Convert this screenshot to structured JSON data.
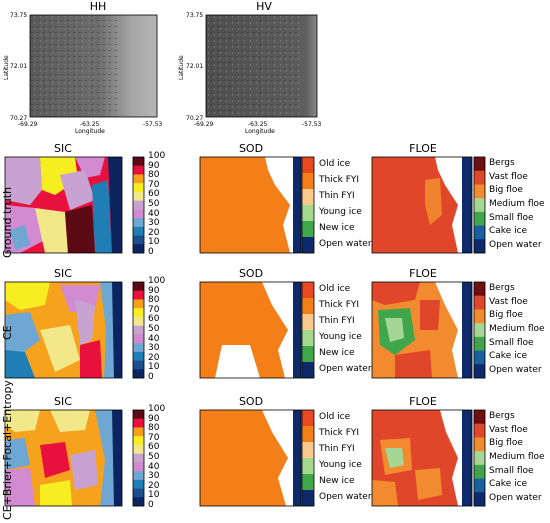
{
  "sar": {
    "panels": [
      {
        "title": "HH",
        "ylabel": "Latitude",
        "xlabel": "Longitude",
        "yticks": [
          "73.75",
          "72.01",
          "70.27"
        ],
        "xticks": [
          "-69.29",
          "-63.25",
          "-57.53"
        ]
      },
      {
        "title": "HV",
        "ylabel": "Latitude",
        "xlabel": "Longitude",
        "yticks": [
          "73.75",
          "72.01",
          "70.27"
        ],
        "xticks": [
          "-69.29",
          "-63.25",
          "-57.53"
        ]
      }
    ]
  },
  "rows": [
    {
      "label": "Ground truth"
    },
    {
      "label": "CE"
    },
    {
      "label": "CE+Brier+Focal+Entropy"
    }
  ],
  "column_titles": {
    "sic": "SIC",
    "sod": "SOD",
    "floe": "FLOE"
  },
  "sic_colorbar": {
    "ticks": [
      "100",
      "90",
      "80",
      "70",
      "60",
      "50",
      "40",
      "30",
      "20",
      "10",
      "0"
    ],
    "colors": [
      "#5c0a14",
      "#e8113e",
      "#f6a21d",
      "#f7ee21",
      "#f2e889",
      "#c8a3d2",
      "#d28ad0",
      "#6ea7d3",
      "#1f7fb5",
      "#1c4f8e",
      "#0c2460"
    ]
  },
  "sod_legend": {
    "items": [
      "Old ice",
      "Thick FYI",
      "Thin FYI",
      "Young ice",
      "New ice",
      "Open water"
    ],
    "colors": [
      "#e8491f",
      "#f47f19",
      "#fbc98c",
      "#a6d98f",
      "#3ea84a",
      "#0e2a6b"
    ]
  },
  "floe_legend": {
    "items": [
      "Bergs",
      "Vast floe",
      "Big floe",
      "Medium floe",
      "Small floe",
      "Cake ice",
      "Open water"
    ],
    "colors": [
      "#6e0f13",
      "#e0472a",
      "#f28a2f",
      "#a5d695",
      "#3fa64c",
      "#1a5fa0",
      "#0e2a6b"
    ]
  }
}
